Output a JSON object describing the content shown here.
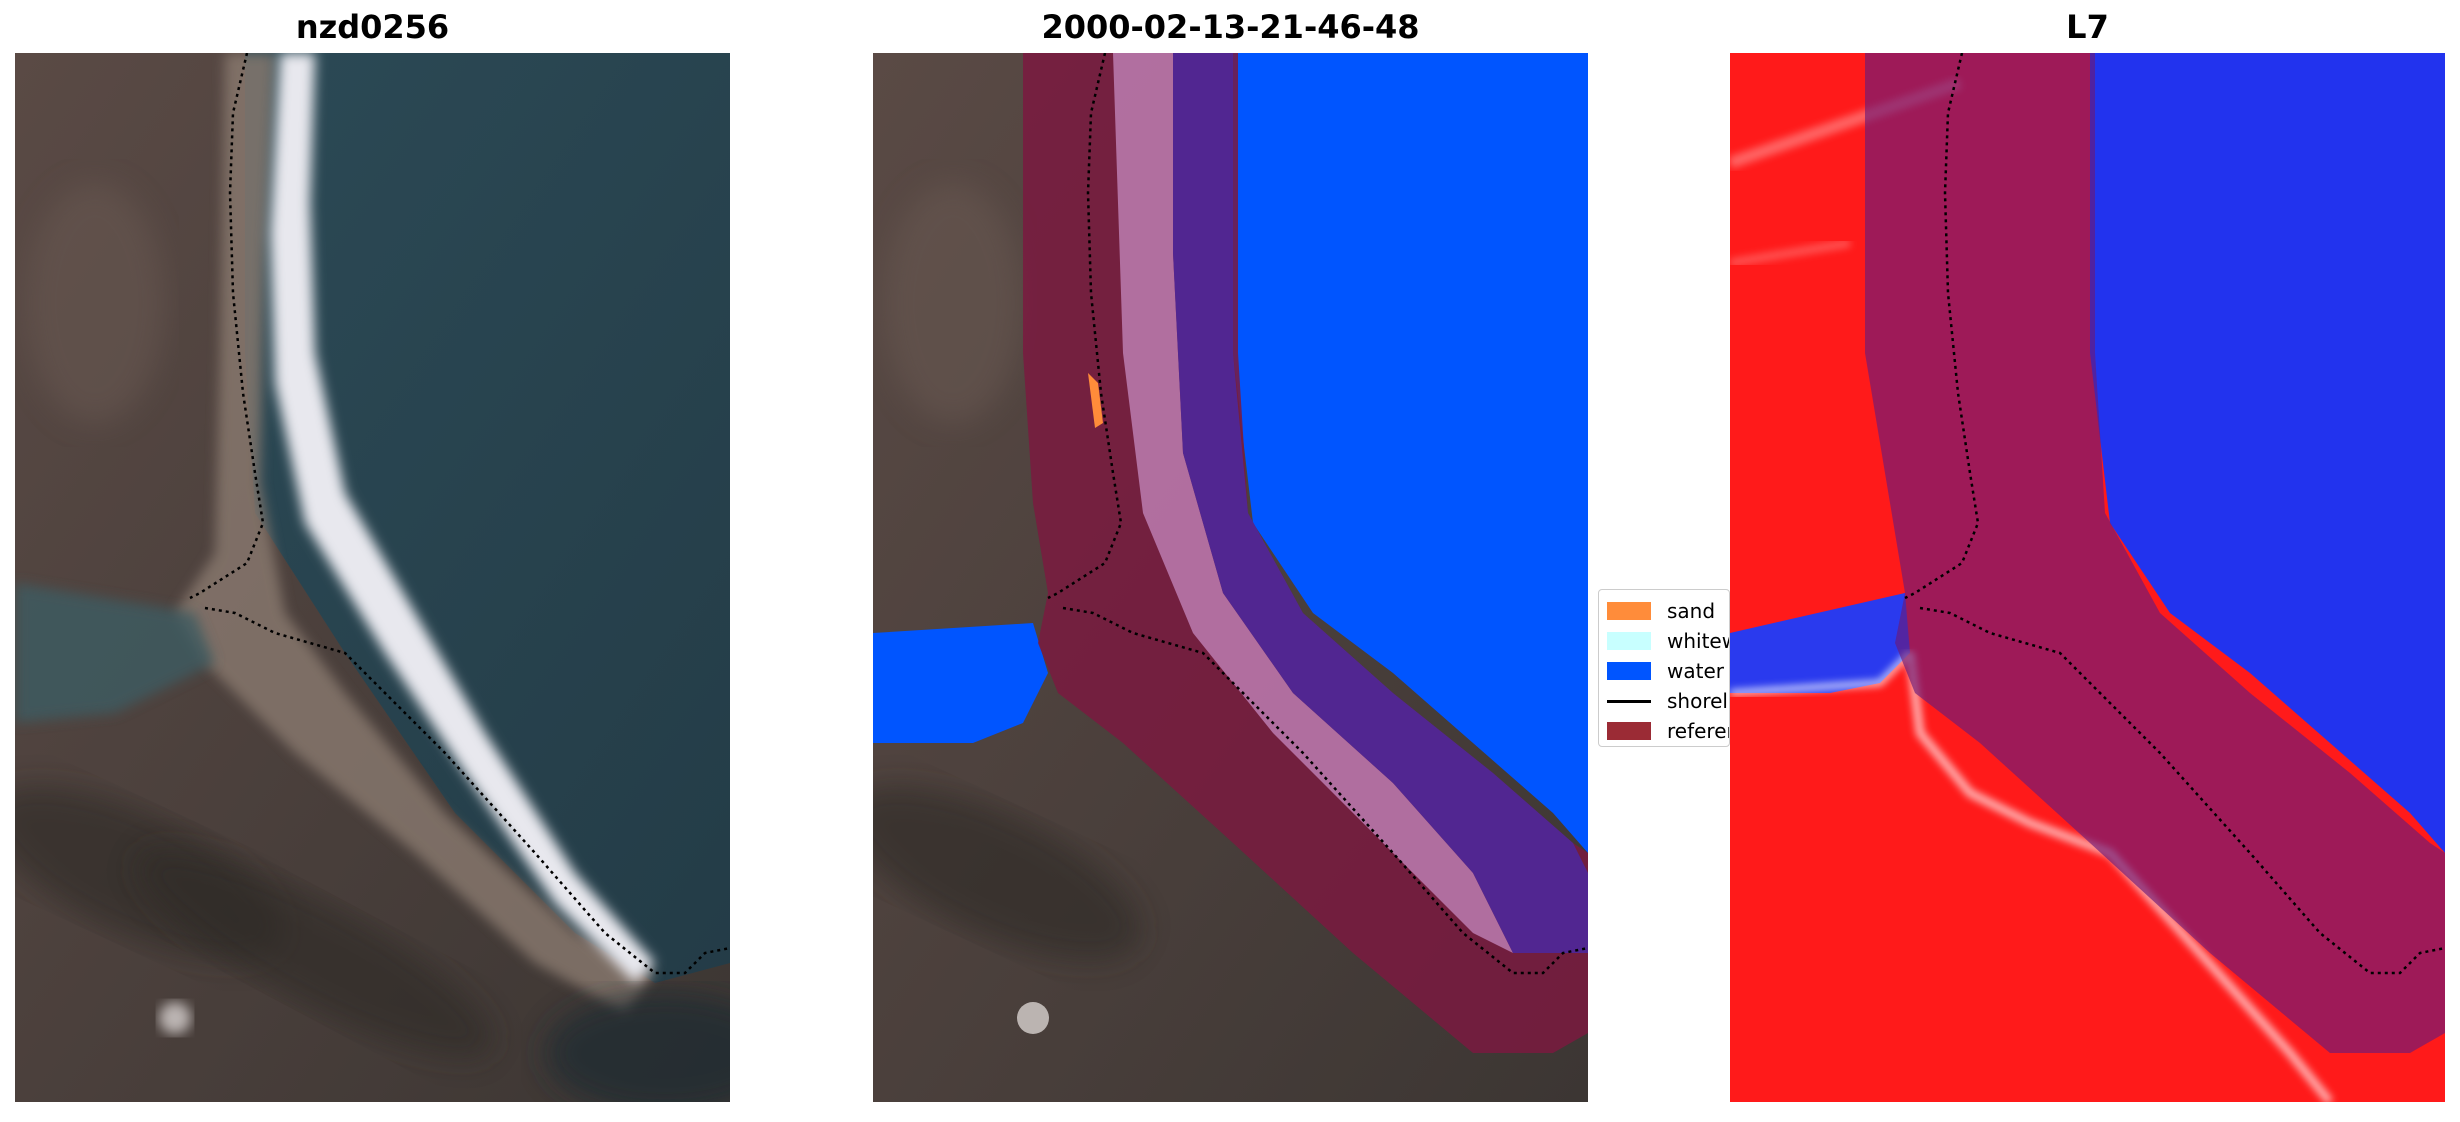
{
  "panels": [
    {
      "title": "nzd0256",
      "content": "satellite RGB image with reference shoreline"
    },
    {
      "title": "2000-02-13-21-46-48",
      "content": "classified image overlay"
    },
    {
      "title": "L7",
      "content": "water index image"
    }
  ],
  "legend": {
    "items": [
      {
        "label": "sand",
        "color": "#ff8c3a",
        "kind": "patch"
      },
      {
        "label": "whitewater",
        "color": "#c8ffff",
        "kind": "patch"
      },
      {
        "label": "water",
        "color": "#0055ff",
        "kind": "patch"
      },
      {
        "label": "shoreline",
        "color": "#000000",
        "kind": "line"
      },
      {
        "label": "reference",
        "color": "#9b2b35",
        "kind": "patch"
      }
    ]
  },
  "colors": {
    "land_dark": "#4a3f3a",
    "sea": "#2c4a55",
    "classified_water": "#0055ff",
    "buffer_overlay": "#7a1a40",
    "index_red": "#ff1a1a",
    "index_blue": "#2233ee"
  }
}
